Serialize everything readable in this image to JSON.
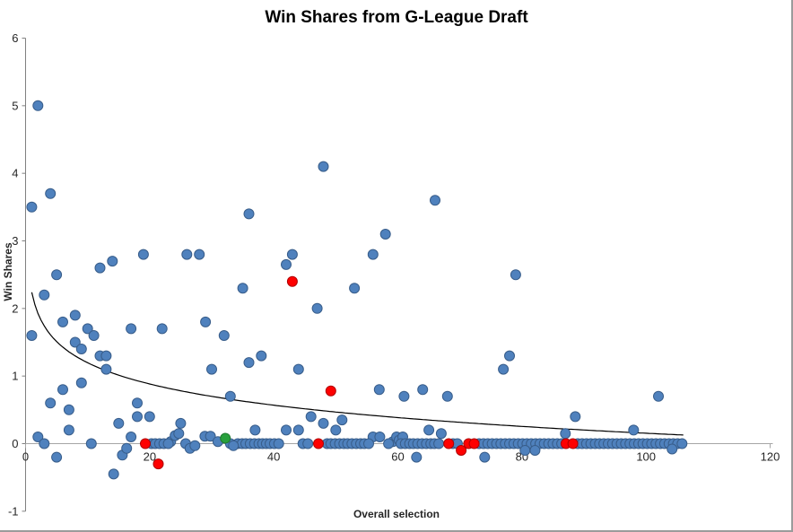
{
  "chart_data": {
    "type": "scatter",
    "title": "Win Shares from G-League Draft",
    "xlabel": "Overall selection",
    "ylabel": "Win Shares",
    "xlim": [
      0,
      120
    ],
    "ylim": [
      -1,
      6
    ],
    "x_ticks": [
      0,
      20,
      40,
      60,
      80,
      100,
      120
    ],
    "y_ticks": [
      -1,
      0,
      1,
      2,
      3,
      4,
      5,
      6
    ],
    "grid": false,
    "legend": "none",
    "axis_color_vertical": "#808080",
    "axis_color_horizontal": "#a6a6a6",
    "tick_label_color": "#262626",
    "series": [
      {
        "name": "draft-picks-blue",
        "marker_fill": "#4F81BD",
        "marker_border": "#385D8A",
        "points": [
          [
            1,
            3.5
          ],
          [
            2,
            5
          ],
          [
            4,
            3.7
          ],
          [
            3,
            2.2
          ],
          [
            5,
            2.5
          ],
          [
            1,
            1.6
          ],
          [
            6,
            1.8
          ],
          [
            8,
            1.9
          ],
          [
            8,
            1.5
          ],
          [
            9,
            1.4
          ],
          [
            10,
            1.7
          ],
          [
            11,
            1.6
          ],
          [
            12,
            2.6
          ],
          [
            14,
            2.7
          ],
          [
            19,
            2.8
          ],
          [
            26,
            2.8
          ],
          [
            28,
            2.8
          ],
          [
            35,
            2.3
          ],
          [
            36,
            3.4
          ],
          [
            42,
            2.65
          ],
          [
            43,
            2.8
          ],
          [
            47,
            2
          ],
          [
            48,
            4.1
          ],
          [
            53,
            2.3
          ],
          [
            56,
            2.8
          ],
          [
            58,
            3.1
          ],
          [
            66,
            3.6
          ],
          [
            79,
            2.5
          ],
          [
            12,
            1.3
          ],
          [
            13,
            1.3
          ],
          [
            13,
            1.1
          ],
          [
            17,
            1.7
          ],
          [
            22,
            1.7
          ],
          [
            29,
            1.8
          ],
          [
            32,
            1.6
          ],
          [
            30,
            1.1
          ],
          [
            36,
            1.2
          ],
          [
            38,
            1.3
          ],
          [
            44,
            1.1
          ],
          [
            77,
            1.1
          ],
          [
            78,
            1.3
          ],
          [
            2,
            0.1
          ],
          [
            4,
            0.6
          ],
          [
            6,
            0.8
          ],
          [
            7,
            0.5
          ],
          [
            7,
            0.2
          ],
          [
            9,
            0.9
          ],
          [
            15,
            0.3
          ],
          [
            17,
            0.1
          ],
          [
            18,
            0.6
          ],
          [
            18,
            0.4
          ],
          [
            20,
            0.4
          ],
          [
            25,
            0.3
          ],
          [
            33,
            0.7
          ],
          [
            37,
            0.2
          ],
          [
            42,
            0.2
          ],
          [
            44,
            0.2
          ],
          [
            46,
            0.4
          ],
          [
            48,
            0.3
          ],
          [
            50,
            0.2
          ],
          [
            51,
            0.35
          ],
          [
            57,
            0.8
          ],
          [
            61,
            0.7
          ],
          [
            64,
            0.8
          ],
          [
            65,
            0.2
          ],
          [
            67,
            0.15
          ],
          [
            68,
            0.7
          ],
          [
            87,
            0.15
          ],
          [
            88.6,
            0.4
          ],
          [
            98,
            0.2
          ],
          [
            102,
            0.7
          ],
          [
            23.4,
            0.03
          ],
          [
            24.1,
            0.12
          ],
          [
            24.7,
            0.15
          ],
          [
            28.9,
            0.11
          ],
          [
            29.8,
            0.11
          ],
          [
            31,
            0.03
          ],
          [
            56,
            0.1
          ],
          [
            57.1,
            0.1
          ],
          [
            59.2,
            0.03
          ],
          [
            59.8,
            0.1
          ],
          [
            60.2,
            0.05
          ],
          [
            60.8,
            0.1
          ],
          [
            3,
            0
          ],
          [
            10.6,
            0
          ],
          [
            20.3,
            0
          ],
          [
            20.9,
            0
          ],
          [
            21.6,
            0
          ],
          [
            22.3,
            0
          ],
          [
            23,
            0
          ],
          [
            25.8,
            0
          ],
          [
            33,
            0
          ],
          [
            34.2,
            0
          ],
          [
            34.9,
            0
          ],
          [
            35.5,
            0
          ],
          [
            36.2,
            0
          ],
          [
            36.9,
            0
          ],
          [
            37.6,
            0
          ],
          [
            38.2,
            0
          ],
          [
            38.8,
            0
          ],
          [
            39.4,
            0
          ],
          [
            40.1,
            0
          ],
          [
            40.8,
            0
          ],
          [
            44.7,
            0
          ],
          [
            45.5,
            0
          ],
          [
            48.6,
            0
          ],
          [
            49.2,
            0
          ],
          [
            49.9,
            0
          ],
          [
            50.6,
            0
          ],
          [
            51.3,
            0
          ],
          [
            51.9,
            0
          ],
          [
            52.6,
            0
          ],
          [
            53.3,
            0
          ],
          [
            54,
            0
          ],
          [
            54.6,
            0
          ],
          [
            55.3,
            0
          ],
          [
            58.5,
            0
          ],
          [
            60.5,
            0
          ],
          [
            61.2,
            0
          ],
          [
            61.9,
            0
          ],
          [
            62.5,
            0
          ],
          [
            63.2,
            0
          ],
          [
            63.9,
            0
          ],
          [
            64.6,
            0
          ],
          [
            65.3,
            0
          ],
          [
            65.9,
            0
          ],
          [
            66.6,
            0
          ],
          [
            68.9,
            0
          ],
          [
            69.6,
            0
          ],
          [
            73.1,
            0
          ],
          [
            73.8,
            0
          ],
          [
            74.5,
            0
          ],
          [
            75.2,
            0
          ],
          [
            75.9,
            0
          ],
          [
            76.6,
            0
          ],
          [
            77.3,
            0
          ],
          [
            78,
            0
          ],
          [
            78.7,
            0
          ],
          [
            79.4,
            0
          ],
          [
            80.1,
            0
          ],
          [
            80.8,
            0
          ],
          [
            81.5,
            0
          ],
          [
            82.2,
            0
          ],
          [
            82.9,
            0
          ],
          [
            83.6,
            0
          ],
          [
            84.3,
            0
          ],
          [
            85,
            0
          ],
          [
            85.7,
            0
          ],
          [
            86.4,
            0
          ],
          [
            89,
            0
          ],
          [
            89.7,
            0
          ],
          [
            90.4,
            0
          ],
          [
            91.1,
            0
          ],
          [
            91.8,
            0
          ],
          [
            92.5,
            0
          ],
          [
            93.2,
            0
          ],
          [
            93.9,
            0
          ],
          [
            94.6,
            0
          ],
          [
            95.3,
            0
          ],
          [
            96,
            0
          ],
          [
            96.7,
            0
          ],
          [
            97.4,
            0
          ],
          [
            98.1,
            0
          ],
          [
            98.8,
            0
          ],
          [
            99.5,
            0
          ],
          [
            100.2,
            0
          ],
          [
            100.9,
            0
          ],
          [
            101.6,
            0
          ],
          [
            102.3,
            0
          ],
          [
            103,
            0
          ],
          [
            103.7,
            0
          ],
          [
            104.4,
            0
          ],
          [
            105.1,
            0
          ],
          [
            105.8,
            0
          ],
          [
            5,
            -0.2
          ],
          [
            14.2,
            -0.45
          ],
          [
            15.6,
            -0.17
          ],
          [
            16.3,
            -0.07
          ],
          [
            26.5,
            -0.07
          ],
          [
            27.3,
            -0.03
          ],
          [
            33.5,
            -0.03
          ],
          [
            63,
            -0.2
          ],
          [
            74,
            -0.2
          ],
          [
            80.5,
            -0.1
          ],
          [
            82.1,
            -0.1
          ],
          [
            104.2,
            -0.08
          ]
        ]
      },
      {
        "name": "highlighted-picks-red",
        "marker_fill": "#FE0000",
        "marker_border": "#B00000",
        "points": [
          [
            19.3,
            0
          ],
          [
            21.4,
            -0.3
          ],
          [
            43,
            2.4
          ],
          [
            47.2,
            0
          ],
          [
            49.2,
            0.78
          ],
          [
            68.2,
            0
          ],
          [
            70.2,
            -0.1
          ],
          [
            71.4,
            0
          ],
          [
            72.3,
            0
          ],
          [
            87.1,
            0
          ],
          [
            88.2,
            0
          ]
        ]
      },
      {
        "name": "highlighted-pick-green",
        "marker_fill": "#28A03C",
        "marker_border": "#1E7A2E",
        "points": [
          [
            32.2,
            0.08
          ]
        ]
      }
    ],
    "trendline": {
      "type": "logarithmic",
      "formula": "y = 2.24 - 0.453*ln(x)",
      "a": 2.24,
      "b": -0.453,
      "x_start": 1,
      "x_end": 106,
      "color": "#000000"
    }
  }
}
